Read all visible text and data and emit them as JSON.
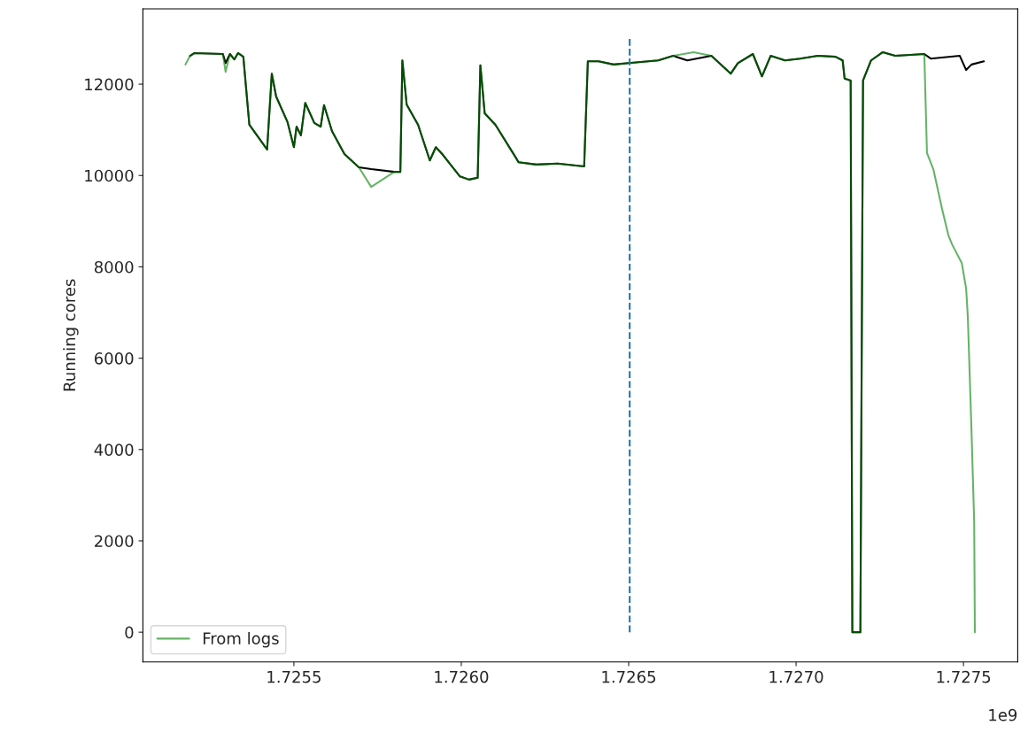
{
  "chart_data": {
    "type": "line",
    "ylabel": "Running cores",
    "xlim": [
      1.725049,
      1.727662
    ],
    "ylim": [
      -650,
      13650
    ],
    "xticks": [
      1.7255,
      {
        "value": 1.726,
        "label": "1.7260"
      },
      1.7265,
      {
        "value": 1.727,
        "label": "1.7270"
      },
      1.7275
    ],
    "yticks": [
      0,
      2000,
      4000,
      6000,
      8000,
      10000,
      12000
    ],
    "annotations": [
      "1e9"
    ],
    "grid": false,
    "legend": "bottom left",
    "series": [
      {
        "color": "#000000",
        "x": [
          1.72519,
          1.725203,
          1.725288,
          1.725296,
          1.725309,
          1.725322,
          1.725333,
          1.725349,
          1.725367,
          1.72542,
          1.725434,
          1.725447,
          1.725481,
          1.7255,
          1.725508,
          1.725521,
          1.725534,
          1.725561,
          1.72558,
          1.72559,
          1.725614,
          1.725651,
          1.725694,
          1.725731,
          1.7258,
          1.725818,
          1.725824,
          1.725837,
          1.725871,
          1.725906,
          1.725924,
          1.725943,
          1.725996,
          1.726023,
          1.726049,
          1.726057,
          1.72607,
          1.726102,
          1.726163,
          1.726171,
          1.726224,
          1.726288,
          1.726367,
          1.726378,
          1.72641,
          1.726455,
          1.7265,
          1.726588,
          1.726633,
          1.726675,
          1.726747,
          1.726805,
          1.726826,
          1.726871,
          1.726898,
          1.726924,
          1.726967,
          1.727012,
          1.727065,
          1.727118,
          1.727139,
          1.727145,
          1.727163,
          1.727168,
          1.727192,
          1.7272,
          1.727224,
          1.727259,
          1.727296,
          1.727383,
          1.727402,
          1.727489,
          1.727508,
          1.727524,
          1.727561
        ],
        "values": [
          12620,
          12680,
          12660,
          12460,
          12660,
          12540,
          12680,
          12600,
          11110,
          10570,
          12230,
          11730,
          11170,
          10620,
          11070,
          10880,
          11590,
          11150,
          11070,
          11540,
          10970,
          10470,
          10180,
          10140,
          10080,
          10080,
          12520,
          11550,
          11110,
          10330,
          10620,
          10470,
          9980,
          9910,
          9950,
          12410,
          11360,
          11110,
          10390,
          10290,
          10240,
          10260,
          10200,
          12500,
          12500,
          12430,
          12460,
          12520,
          12620,
          12520,
          12620,
          12230,
          12460,
          12660,
          12170,
          12620,
          12520,
          12560,
          12620,
          12600,
          12520,
          12120,
          12080,
          0,
          0,
          12080,
          12520,
          12700,
          12620,
          12660,
          12560,
          12620,
          12310,
          12430,
          12500
        ]
      },
      {
        "name": "From logs",
        "color": "#66b366",
        "x": [
          1.725176,
          1.72519,
          1.725203,
          1.725288,
          1.725296,
          1.725309,
          1.725322,
          1.725333,
          1.725349,
          1.725367,
          1.72542,
          1.725434,
          1.725447,
          1.725481,
          1.7255,
          1.725508,
          1.725521,
          1.725534,
          1.725561,
          1.72558,
          1.72559,
          1.725614,
          1.725651,
          1.725694,
          1.725731,
          1.7258,
          1.725818,
          1.725824,
          1.725837,
          1.725871,
          1.725906,
          1.725924,
          1.725943,
          1.725996,
          1.726023,
          1.726049,
          1.726057,
          1.72607,
          1.726102,
          1.726163,
          1.726171,
          1.726224,
          1.726288,
          1.726367,
          1.726378,
          1.72641,
          1.726455,
          1.7265,
          1.726588,
          1.726633,
          1.726694,
          1.726747,
          1.726805,
          1.726826,
          1.726871,
          1.726898,
          1.726924,
          1.726967,
          1.727012,
          1.727065,
          1.727118,
          1.727139,
          1.727145,
          1.727163,
          1.727168,
          1.727192,
          1.7272,
          1.727224,
          1.727259,
          1.727296,
          1.727383,
          1.727391,
          1.72741,
          1.727436,
          1.727455,
          1.727466,
          1.727495,
          1.727508,
          1.727513,
          1.727524,
          1.727532,
          1.727534
        ],
        "values": [
          12430,
          12620,
          12680,
          12660,
          12270,
          12660,
          12540,
          12680,
          12600,
          11110,
          10570,
          12230,
          11730,
          11170,
          10620,
          11070,
          10880,
          11590,
          11150,
          11070,
          11540,
          10970,
          10470,
          10180,
          9750,
          10080,
          10080,
          12520,
          11550,
          11110,
          10330,
          10620,
          10470,
          9980,
          9910,
          9950,
          12410,
          11360,
          11110,
          10390,
          10290,
          10240,
          10260,
          10200,
          12500,
          12500,
          12430,
          12460,
          12520,
          12620,
          12700,
          12620,
          12230,
          12460,
          12660,
          12170,
          12620,
          12520,
          12560,
          12620,
          12600,
          12520,
          12120,
          12080,
          0,
          0,
          12080,
          12520,
          12700,
          12620,
          12660,
          10490,
          10140,
          9270,
          8690,
          8490,
          8080,
          7520,
          6900,
          4400,
          2400,
          0
        ]
      },
      {
        "color": "#1f77b4",
        "line_style": "dashed",
        "x": [
          1.726503,
          1.726503
        ],
        "values": [
          0,
          13000
        ]
      }
    ]
  }
}
